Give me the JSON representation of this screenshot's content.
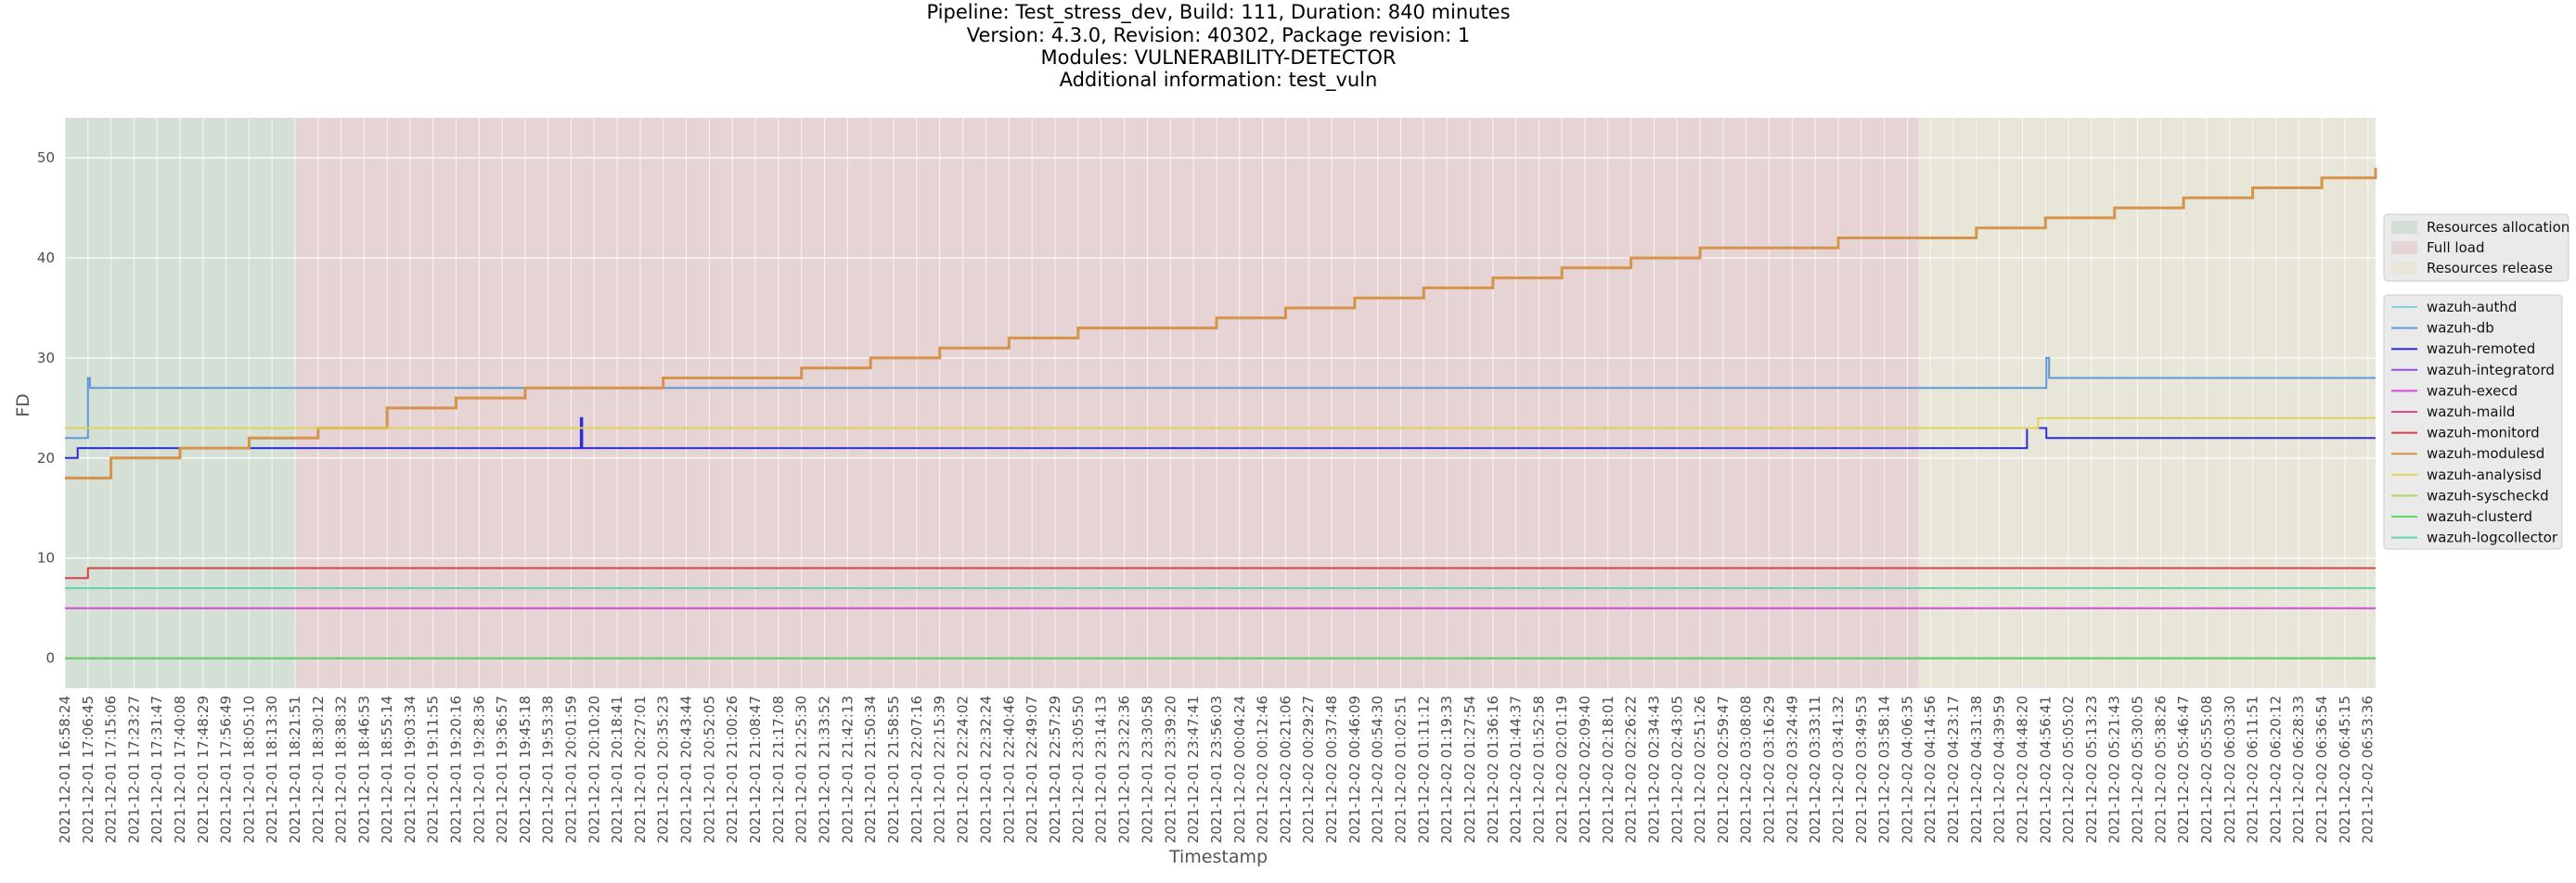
{
  "chart_data": {
    "type": "line",
    "title_lines": [
      "Pipeline: Test_stress_dev, Build: 111, Duration: 840 minutes",
      "Version: 4.3.0, Revision: 40302, Package revision: 1",
      "Modules: VULNERABILITY-DETECTOR",
      "Additional information: test_vuln"
    ],
    "xlabel": "Timestamp",
    "ylabel": "FD",
    "ylim": [
      -3,
      54
    ],
    "yticks": [
      0,
      10,
      20,
      30,
      40,
      50
    ],
    "grid": true,
    "x_start": "2021-12-01 16:58:24",
    "x_end": "2021-12-02 06:56:24",
    "xtick_labels": [
      "2021-12-01 16:58:24",
      "2021-12-01 17:06:45",
      "2021-12-01 17:15:06",
      "2021-12-01 17:23:27",
      "2021-12-01 17:31:47",
      "2021-12-01 17:40:08",
      "2021-12-01 17:48:29",
      "2021-12-01 17:56:49",
      "2021-12-01 18:05:10",
      "2021-12-01 18:13:30",
      "2021-12-01 18:21:51",
      "2021-12-01 18:30:12",
      "2021-12-01 18:38:32",
      "2021-12-01 18:46:53",
      "2021-12-01 18:55:14",
      "2021-12-01 19:03:34",
      "2021-12-01 19:11:55",
      "2021-12-01 19:20:16",
      "2021-12-01 19:28:36",
      "2021-12-01 19:36:57",
      "2021-12-01 19:45:18",
      "2021-12-01 19:53:38",
      "2021-12-01 20:01:59",
      "2021-12-01 20:10:20",
      "2021-12-01 20:18:41",
      "2021-12-01 20:27:01",
      "2021-12-01 20:35:23",
      "2021-12-01 20:43:44",
      "2021-12-01 20:52:05",
      "2021-12-01 21:00:26",
      "2021-12-01 21:08:47",
      "2021-12-01 21:17:08",
      "2021-12-01 21:25:30",
      "2021-12-01 21:33:52",
      "2021-12-01 21:42:13",
      "2021-12-01 21:50:34",
      "2021-12-01 21:58:55",
      "2021-12-01 22:07:16",
      "2021-12-01 22:15:39",
      "2021-12-01 22:24:02",
      "2021-12-01 22:32:24",
      "2021-12-01 22:40:46",
      "2021-12-01 22:49:07",
      "2021-12-01 22:57:29",
      "2021-12-01 23:05:50",
      "2021-12-01 23:14:13",
      "2021-12-01 23:22:36",
      "2021-12-01 23:30:58",
      "2021-12-01 23:39:20",
      "2021-12-01 23:47:41",
      "2021-12-01 23:56:03",
      "2021-12-02 00:04:24",
      "2021-12-02 00:12:46",
      "2021-12-02 00:21:06",
      "2021-12-02 00:29:27",
      "2021-12-02 00:37:48",
      "2021-12-02 00:46:09",
      "2021-12-02 00:54:30",
      "2021-12-02 01:02:51",
      "2021-12-02 01:11:12",
      "2021-12-02 01:19:33",
      "2021-12-02 01:27:54",
      "2021-12-02 01:36:16",
      "2021-12-02 01:44:37",
      "2021-12-02 01:52:58",
      "2021-12-02 02:01:19",
      "2021-12-02 02:09:40",
      "2021-12-02 02:18:01",
      "2021-12-02 02:26:22",
      "2021-12-02 02:34:43",
      "2021-12-02 02:43:05",
      "2021-12-02 02:51:26",
      "2021-12-02 02:59:47",
      "2021-12-02 03:08:08",
      "2021-12-02 03:16:29",
      "2021-12-02 03:24:49",
      "2021-12-02 03:33:11",
      "2021-12-02 03:41:32",
      "2021-12-02 03:49:53",
      "2021-12-02 03:58:14",
      "2021-12-02 04:06:35",
      "2021-12-02 04:14:56",
      "2021-12-02 04:23:17",
      "2021-12-02 04:31:38",
      "2021-12-02 04:39:59",
      "2021-12-02 04:48:20",
      "2021-12-02 04:56:41",
      "2021-12-02 05:05:02",
      "2021-12-02 05:13:23",
      "2021-12-02 05:21:43",
      "2021-12-02 05:30:05",
      "2021-12-02 05:38:26",
      "2021-12-02 05:46:47",
      "2021-12-02 05:55:08",
      "2021-12-02 06:03:30",
      "2021-12-02 06:11:51",
      "2021-12-02 06:20:12",
      "2021-12-02 06:28:33",
      "2021-12-02 06:36:54",
      "2021-12-02 06:45:15",
      "2021-12-02 06:53:36"
    ],
    "phases": [
      {
        "name": "Resources allocation",
        "start": "2021-12-01 16:58:24",
        "end": "2021-12-01 18:21:51",
        "color": "#d4e0d5"
      },
      {
        "name": "Full load",
        "start": "2021-12-01 18:21:51",
        "end": "2021-12-02 04:10:45",
        "color": "#e6d3d4"
      },
      {
        "name": "Resources release",
        "start": "2021-12-02 04:10:45",
        "end": "2021-12-02 06:56:24",
        "color": "#e8e6d8"
      }
    ],
    "legend_position": "right",
    "series": [
      {
        "name": "wazuh-authd",
        "color": "#7ed3d8",
        "points": [
          [
            "2021-12-01 16:58:24",
            0
          ],
          [
            "2021-12-02 06:56:24",
            0
          ]
        ]
      },
      {
        "name": "wazuh-db",
        "color": "#5b9ad8",
        "points": [
          [
            "2021-12-01 16:58:24",
            22
          ],
          [
            "2021-12-01 17:06:00",
            22
          ],
          [
            "2021-12-01 17:06:45",
            28
          ],
          [
            "2021-12-01 17:07:30",
            27
          ],
          [
            "2021-12-01 18:21:51",
            27
          ],
          [
            "2021-12-02 04:56:00",
            27
          ],
          [
            "2021-12-02 04:57:00",
            30
          ],
          [
            "2021-12-02 04:58:00",
            28
          ],
          [
            "2021-12-02 06:56:24",
            28
          ]
        ]
      },
      {
        "name": "wazuh-remoted",
        "color": "#2d2de0",
        "points": [
          [
            "2021-12-01 16:58:24",
            20
          ],
          [
            "2021-12-01 17:03:00",
            21
          ],
          [
            "2021-12-01 20:05:00",
            21
          ],
          [
            "2021-12-01 20:05:30",
            24
          ],
          [
            "2021-12-01 20:06:00",
            21
          ],
          [
            "2021-12-02 04:49:00",
            21
          ],
          [
            "2021-12-02 04:50:00",
            23
          ],
          [
            "2021-12-02 04:57:00",
            22
          ],
          [
            "2021-12-02 06:56:24",
            22
          ]
        ]
      },
      {
        "name": "wazuh-integratord",
        "color": "#9a4ed8",
        "points": [
          [
            "2021-12-01 16:58:24",
            0
          ],
          [
            "2021-12-02 06:56:24",
            0
          ]
        ]
      },
      {
        "name": "wazuh-execd",
        "color": "#d24ad8",
        "points": [
          [
            "2021-12-01 16:58:24",
            5
          ],
          [
            "2021-12-02 06:56:24",
            5
          ]
        ]
      },
      {
        "name": "wazuh-maild",
        "color": "#d84a8c",
        "points": [
          [
            "2021-12-01 16:58:24",
            0
          ],
          [
            "2021-12-02 06:56:24",
            0
          ]
        ]
      },
      {
        "name": "wazuh-monitord",
        "color": "#d24545",
        "points": [
          [
            "2021-12-01 16:58:24",
            8
          ],
          [
            "2021-12-01 17:06:45",
            8
          ],
          [
            "2021-12-01 17:06:45",
            9
          ],
          [
            "2021-12-02 06:56:24",
            9
          ]
        ]
      },
      {
        "name": "wazuh-modulesd",
        "color": "#d6934a",
        "points": [
          [
            "2021-12-01 16:58:24",
            18
          ],
          [
            "2021-12-01 17:15:06",
            20
          ],
          [
            "2021-12-01 17:40:08",
            21
          ],
          [
            "2021-12-01 18:05:10",
            22
          ],
          [
            "2021-12-01 18:30:12",
            23
          ],
          [
            "2021-12-01 18:55:14",
            25
          ],
          [
            "2021-12-01 19:20:16",
            26
          ],
          [
            "2021-12-01 19:45:18",
            27
          ],
          [
            "2021-12-01 20:10:20",
            27
          ],
          [
            "2021-12-01 20:35:23",
            28
          ],
          [
            "2021-12-01 21:00:26",
            28
          ],
          [
            "2021-12-01 21:25:30",
            29
          ],
          [
            "2021-12-01 21:50:34",
            30
          ],
          [
            "2021-12-01 22:15:39",
            31
          ],
          [
            "2021-12-01 22:40:46",
            32
          ],
          [
            "2021-12-01 23:05:50",
            33
          ],
          [
            "2021-12-01 23:30:58",
            33
          ],
          [
            "2021-12-01 23:56:03",
            34
          ],
          [
            "2021-12-02 00:21:06",
            35
          ],
          [
            "2021-12-02 00:46:09",
            36
          ],
          [
            "2021-12-02 01:11:12",
            37
          ],
          [
            "2021-12-02 01:36:16",
            38
          ],
          [
            "2021-12-02 02:01:19",
            39
          ],
          [
            "2021-12-02 02:26:22",
            40
          ],
          [
            "2021-12-02 02:51:26",
            41
          ],
          [
            "2021-12-02 03:16:29",
            41
          ],
          [
            "2021-12-02 03:41:32",
            42
          ],
          [
            "2021-12-02 04:06:35",
            42
          ],
          [
            "2021-12-02 04:31:38",
            43
          ],
          [
            "2021-12-02 04:56:41",
            44
          ],
          [
            "2021-12-02 05:21:43",
            45
          ],
          [
            "2021-12-02 05:46:47",
            46
          ],
          [
            "2021-12-02 06:11:51",
            47
          ],
          [
            "2021-12-02 06:36:54",
            48
          ],
          [
            "2021-12-02 06:56:24",
            49
          ]
        ]
      },
      {
        "name": "wazuh-analysisd",
        "color": "#e0d25a",
        "points": [
          [
            "2021-12-01 16:58:24",
            23
          ],
          [
            "2021-12-02 04:53:00",
            23
          ],
          [
            "2021-12-02 04:54:00",
            24
          ],
          [
            "2021-12-02 06:56:24",
            24
          ]
        ]
      },
      {
        "name": "wazuh-syscheckd",
        "color": "#aed66a",
        "points": [
          [
            "2021-12-01 16:58:24",
            0
          ],
          [
            "2021-12-02 06:56:24",
            0
          ]
        ]
      },
      {
        "name": "wazuh-clusterd",
        "color": "#5ed66a",
        "points": [
          [
            "2021-12-01 16:58:24",
            0
          ],
          [
            "2021-12-02 06:56:24",
            0
          ]
        ]
      },
      {
        "name": "wazuh-logcollector",
        "color": "#5ed6a8",
        "points": [
          [
            "2021-12-01 16:58:24",
            7
          ],
          [
            "2021-12-02 06:56:24",
            7
          ]
        ]
      }
    ]
  }
}
